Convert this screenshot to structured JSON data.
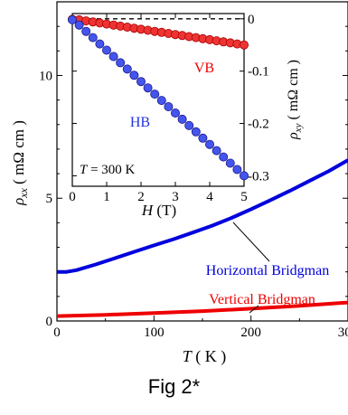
{
  "caption": "Fig 2*",
  "chart_data": [
    {
      "type": "line",
      "xlabel": "T ( K )",
      "ylabel": "ρxx ( mΩ cm )",
      "xlim": [
        0,
        300
      ],
      "ylim": [
        0,
        13
      ],
      "xticks": [
        "0",
        "100",
        "200",
        "300"
      ],
      "yticks": [
        "0",
        "5",
        "10"
      ],
      "grid": false,
      "series": [
        {
          "name": "Horizontal Bridgman",
          "color": "#0000dd",
          "x": [
            0,
            10,
            20,
            40,
            60,
            80,
            100,
            120,
            140,
            160,
            180,
            200,
            220,
            240,
            260,
            280,
            300
          ],
          "y": [
            2.0,
            2.0,
            2.07,
            2.3,
            2.56,
            2.82,
            3.08,
            3.33,
            3.6,
            3.88,
            4.2,
            4.55,
            4.92,
            5.3,
            5.7,
            6.1,
            6.55
          ]
        },
        {
          "name": "Vertical Bridgman",
          "color": "#ee0000",
          "x": [
            0,
            50,
            100,
            150,
            200,
            250,
            300
          ],
          "y": [
            0.2,
            0.25,
            0.32,
            0.4,
            0.5,
            0.62,
            0.75
          ]
        }
      ]
    },
    {
      "type": "scatter",
      "annotation": "T = 300 K",
      "xlabel": "H (T)",
      "ylabel": "ρxy ( mΩ cm )",
      "xlim": [
        0,
        5
      ],
      "ylim": [
        -0.32,
        0.01
      ],
      "xticks": [
        "0",
        "1",
        "2",
        "3",
        "4",
        "5"
      ],
      "yticks": [
        "0",
        "-0.1",
        "-0.2",
        "-0.3"
      ],
      "dashed_zero_line": true,
      "series": [
        {
          "name": "VB",
          "color": "#ee3333",
          "x": [
            0,
            0.2,
            0.4,
            0.6,
            0.8,
            1.0,
            1.2,
            1.4,
            1.6,
            1.8,
            2.0,
            2.2,
            2.4,
            2.6,
            2.8,
            3.0,
            3.2,
            3.4,
            3.6,
            3.8,
            4.0,
            4.2,
            4.4,
            4.6,
            4.8,
            5.0
          ],
          "y": [
            -0.001,
            -0.002,
            -0.004,
            -0.006,
            -0.008,
            -0.01,
            -0.012,
            -0.014,
            -0.016,
            -0.018,
            -0.02,
            -0.022,
            -0.024,
            -0.026,
            -0.028,
            -0.03,
            -0.032,
            -0.034,
            -0.036,
            -0.038,
            -0.04,
            -0.042,
            -0.044,
            -0.046,
            -0.048,
            -0.05
          ]
        },
        {
          "name": "HB",
          "color": "#4455ee",
          "x": [
            0,
            0.2,
            0.4,
            0.6,
            0.8,
            1.0,
            1.2,
            1.4,
            1.6,
            1.8,
            2.0,
            2.2,
            2.4,
            2.6,
            2.8,
            3.0,
            3.2,
            3.4,
            3.6,
            3.8,
            4.0,
            4.2,
            4.4,
            4.6,
            4.8,
            5.0
          ],
          "y": [
            -0.002,
            -0.012,
            -0.024,
            -0.036,
            -0.048,
            -0.06,
            -0.072,
            -0.084,
            -0.096,
            -0.108,
            -0.12,
            -0.132,
            -0.144,
            -0.156,
            -0.168,
            -0.18,
            -0.192,
            -0.204,
            -0.216,
            -0.228,
            -0.24,
            -0.252,
            -0.264,
            -0.276,
            -0.288,
            -0.3
          ]
        }
      ]
    }
  ]
}
